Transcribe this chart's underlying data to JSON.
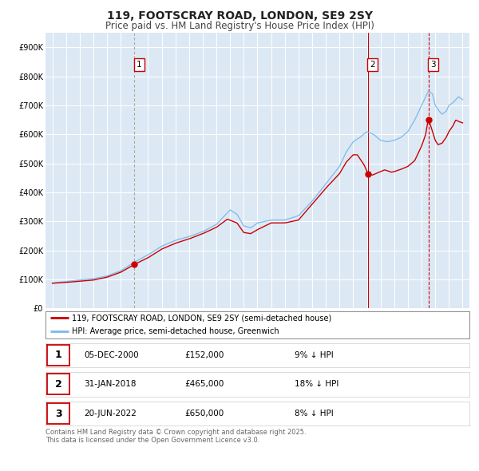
{
  "title": "119, FOOTSCRAY ROAD, LONDON, SE9 2SY",
  "subtitle": "Price paid vs. HM Land Registry's House Price Index (HPI)",
  "title_fontsize": 10,
  "subtitle_fontsize": 8.5,
  "background_color": "#ffffff",
  "plot_bg_color": "#dce9f5",
  "grid_color": "#ffffff",
  "legend_label_red": "119, FOOTSCRAY ROAD, LONDON, SE9 2SY (semi-detached house)",
  "legend_label_blue": "HPI: Average price, semi-detached house, Greenwich",
  "red_color": "#cc0000",
  "blue_color": "#7db8e8",
  "transactions": [
    {
      "date": 2001.0,
      "price": 152000,
      "label": "1"
    },
    {
      "date": 2018.08,
      "price": 465000,
      "label": "2"
    },
    {
      "date": 2022.5,
      "price": 650000,
      "label": "3"
    }
  ],
  "table_rows": [
    {
      "num": "1",
      "date": "05-DEC-2000",
      "price": "£152,000",
      "pct": "9% ↓ HPI"
    },
    {
      "num": "2",
      "date": "31-JAN-2018",
      "price": "£465,000",
      "pct": "18% ↓ HPI"
    },
    {
      "num": "3",
      "date": "20-JUN-2022",
      "price": "£650,000",
      "pct": "8% ↓ HPI"
    }
  ],
  "footer": "Contains HM Land Registry data © Crown copyright and database right 2025.\nThis data is licensed under the Open Government Licence v3.0.",
  "ylim": [
    0,
    950000
  ],
  "yticks": [
    0,
    100000,
    200000,
    300000,
    400000,
    500000,
    600000,
    700000,
    800000,
    900000
  ],
  "ytick_labels": [
    "£0",
    "£100K",
    "£200K",
    "£300K",
    "£400K",
    "£500K",
    "£600K",
    "£700K",
    "£800K",
    "£900K"
  ],
  "xlim": [
    1994.5,
    2025.5
  ],
  "xticks": [
    1995,
    1996,
    1997,
    1998,
    1999,
    2000,
    2001,
    2002,
    2003,
    2004,
    2005,
    2006,
    2007,
    2008,
    2009,
    2010,
    2011,
    2012,
    2013,
    2014,
    2015,
    2016,
    2017,
    2018,
    2019,
    2020,
    2021,
    2022,
    2023,
    2024,
    2025
  ]
}
